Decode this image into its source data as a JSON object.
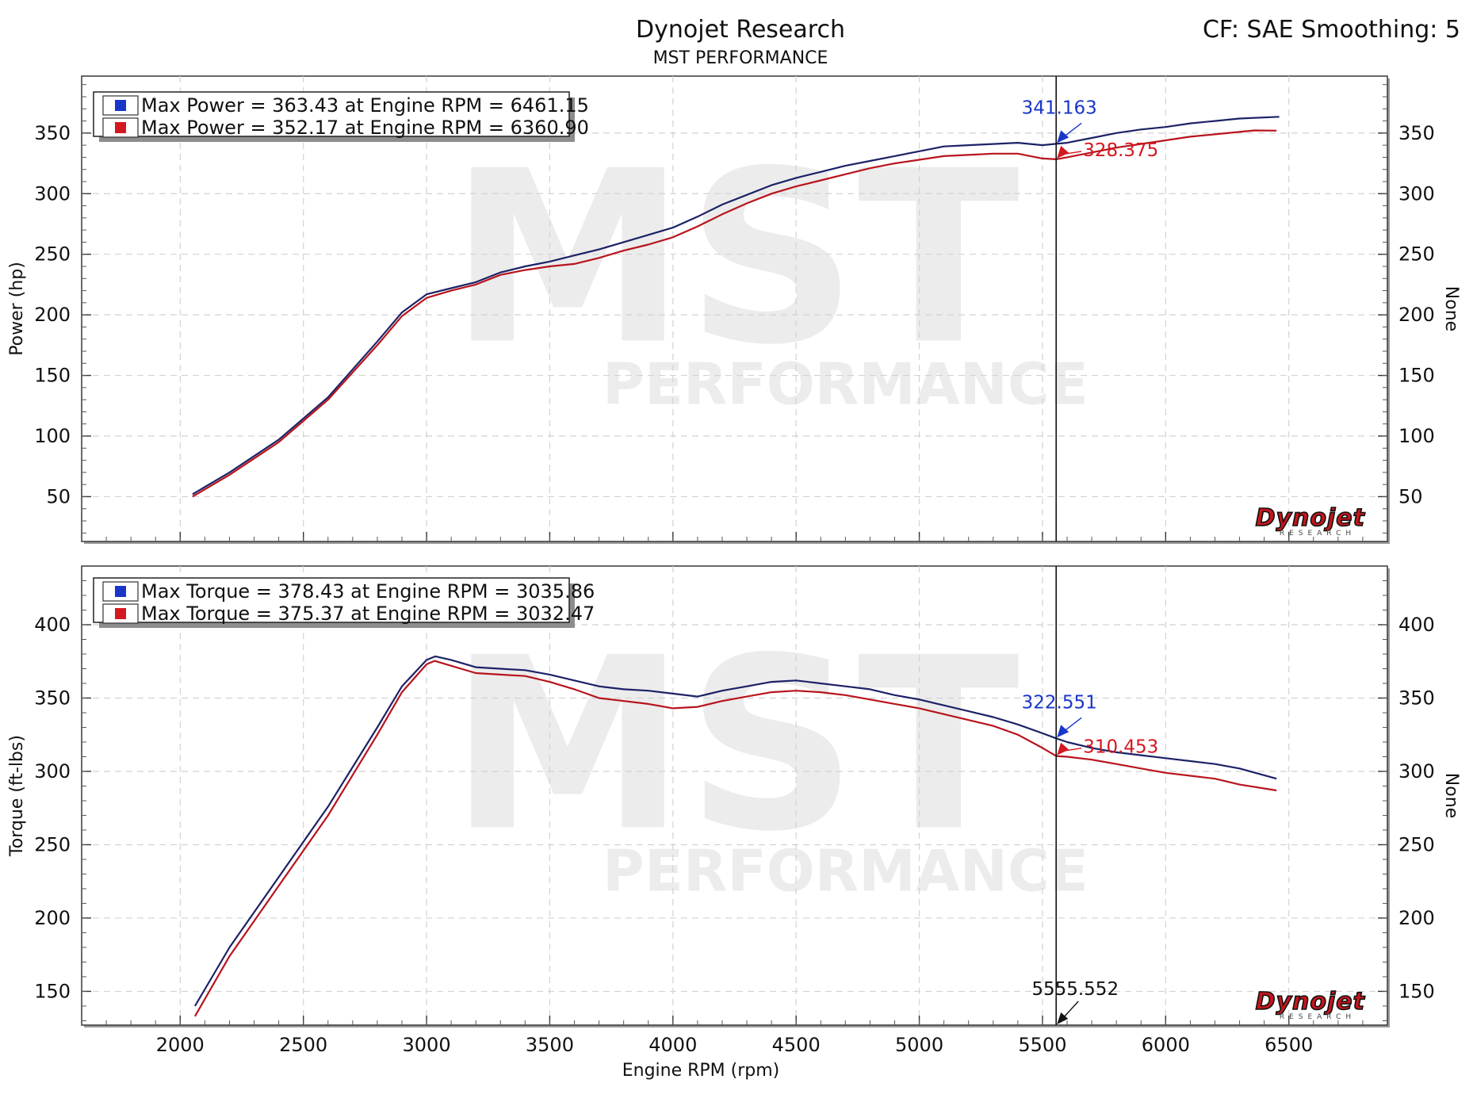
{
  "header": {
    "title": "Dynojet Research",
    "subtitle": "MST PERFORMANCE",
    "settings": "CF: SAE Smoothing: 5"
  },
  "watermark": {
    "brand": "MST",
    "tagline": "PERFORMANCE"
  },
  "logo": {
    "text": "Dynojet",
    "subtext": "RESEARCH"
  },
  "colors": {
    "run1": "#1c2266",
    "run1_marker": "#1a36c9",
    "run2": "#b8141d",
    "run2_marker": "#d41820",
    "cursor": "#111111",
    "grid": "#d2d2d2"
  },
  "x_axis": {
    "label": "Engine RPM (rpm)",
    "range": [
      1600,
      6900
    ],
    "ticks": [
      2000,
      2500,
      3000,
      3500,
      4000,
      4500,
      5000,
      5500,
      6000,
      6500
    ]
  },
  "cursor": {
    "x": 5555.552,
    "label": "5555.552"
  },
  "chart_data": [
    {
      "type": "line",
      "id": "power",
      "ylabel": "Power (hp)",
      "ylabel_right": "None",
      "ylim": [
        13,
        397
      ],
      "yticks": [
        50,
        100,
        150,
        200,
        250,
        300,
        350
      ],
      "grid": true,
      "legend_position": "top-left",
      "legend": [
        "Max Power = 363.43 at Engine RPM = 6461.15",
        "Max Power = 352.17 at Engine RPM = 6360.90"
      ],
      "cursor_values": [
        "341.163",
        "328.375"
      ],
      "series": [
        {
          "values": [
            [
              2050,
              52
            ],
            [
              2200,
              70
            ],
            [
              2400,
              97
            ],
            [
              2600,
              132
            ],
            [
              2800,
              178
            ],
            [
              2900,
              202
            ],
            [
              3000,
              217
            ],
            [
              3100,
              222
            ],
            [
              3200,
              227
            ],
            [
              3300,
              235
            ],
            [
              3400,
              240
            ],
            [
              3500,
              244
            ],
            [
              3600,
              249
            ],
            [
              3700,
              254
            ],
            [
              3800,
              260
            ],
            [
              3900,
              266
            ],
            [
              4000,
              272
            ],
            [
              4100,
              281
            ],
            [
              4200,
              291
            ],
            [
              4300,
              299
            ],
            [
              4400,
              307
            ],
            [
              4500,
              313
            ],
            [
              4600,
              318
            ],
            [
              4700,
              323
            ],
            [
              4800,
              327
            ],
            [
              4900,
              331
            ],
            [
              5000,
              335
            ],
            [
              5100,
              339
            ],
            [
              5200,
              340
            ],
            [
              5300,
              341
            ],
            [
              5400,
              342
            ],
            [
              5500,
              340
            ],
            [
              5555.552,
              341.163
            ],
            [
              5600,
              342
            ],
            [
              5700,
              346
            ],
            [
              5800,
              350
            ],
            [
              5900,
              353
            ],
            [
              6000,
              355
            ],
            [
              6100,
              358
            ],
            [
              6200,
              360
            ],
            [
              6300,
              362
            ],
            [
              6461.15,
              363.43
            ]
          ]
        },
        {
          "values": [
            [
              2050,
              50
            ],
            [
              2200,
              68
            ],
            [
              2400,
              95
            ],
            [
              2600,
              130
            ],
            [
              2800,
              175
            ],
            [
              2900,
              199
            ],
            [
              3000,
              214
            ],
            [
              3100,
              220
            ],
            [
              3200,
              225
            ],
            [
              3300,
              233
            ],
            [
              3400,
              237
            ],
            [
              3500,
              240
            ],
            [
              3600,
              242
            ],
            [
              3700,
              247
            ],
            [
              3800,
              253
            ],
            [
              3900,
              258
            ],
            [
              4000,
              264
            ],
            [
              4100,
              273
            ],
            [
              4200,
              283
            ],
            [
              4300,
              292
            ],
            [
              4400,
              300
            ],
            [
              4500,
              306
            ],
            [
              4600,
              311
            ],
            [
              4700,
              316
            ],
            [
              4800,
              321
            ],
            [
              4900,
              325
            ],
            [
              5000,
              328
            ],
            [
              5100,
              331
            ],
            [
              5200,
              332
            ],
            [
              5300,
              333
            ],
            [
              5400,
              333
            ],
            [
              5500,
              329
            ],
            [
              5555.552,
              328.375
            ],
            [
              5600,
              330
            ],
            [
              5700,
              334
            ],
            [
              5800,
              338
            ],
            [
              5900,
              341
            ],
            [
              6000,
              344
            ],
            [
              6100,
              347
            ],
            [
              6200,
              349
            ],
            [
              6360.9,
              352.17
            ],
            [
              6450,
              352
            ]
          ]
        }
      ]
    },
    {
      "type": "line",
      "id": "torque",
      "ylabel": "Torque (ft-lbs)",
      "ylabel_right": "None",
      "ylim": [
        127,
        440
      ],
      "yticks": [
        150,
        200,
        250,
        300,
        350,
        400
      ],
      "grid": true,
      "legend_position": "top-left",
      "legend": [
        "Max Torque = 378.43 at Engine RPM = 3035.86",
        "Max Torque = 375.37 at Engine RPM = 3032.47"
      ],
      "cursor_values": [
        "322.551",
        "310.453"
      ],
      "series": [
        {
          "values": [
            [
              2060,
              140
            ],
            [
              2200,
              180
            ],
            [
              2400,
              228
            ],
            [
              2600,
              276
            ],
            [
              2800,
              330
            ],
            [
              2900,
              358
            ],
            [
              3000,
              376
            ],
            [
              3035.86,
              378.43
            ],
            [
              3100,
              376
            ],
            [
              3200,
              371
            ],
            [
              3300,
              370
            ],
            [
              3400,
              369
            ],
            [
              3500,
              366
            ],
            [
              3600,
              362
            ],
            [
              3700,
              358
            ],
            [
              3800,
              356
            ],
            [
              3900,
              355
            ],
            [
              4000,
              353
            ],
            [
              4100,
              351
            ],
            [
              4200,
              355
            ],
            [
              4300,
              358
            ],
            [
              4400,
              361
            ],
            [
              4500,
              362
            ],
            [
              4600,
              360
            ],
            [
              4700,
              358
            ],
            [
              4800,
              356
            ],
            [
              4900,
              352
            ],
            [
              5000,
              349
            ],
            [
              5100,
              345
            ],
            [
              5200,
              341
            ],
            [
              5300,
              337
            ],
            [
              5400,
              332
            ],
            [
              5500,
              326
            ],
            [
              5555.552,
              322.551
            ],
            [
              5600,
              320
            ],
            [
              5700,
              316
            ],
            [
              5800,
              313
            ],
            [
              5900,
              311
            ],
            [
              6000,
              309
            ],
            [
              6100,
              307
            ],
            [
              6200,
              305
            ],
            [
              6300,
              302
            ],
            [
              6450,
              295
            ]
          ]
        },
        {
          "values": [
            [
              2060,
              133
            ],
            [
              2200,
              174
            ],
            [
              2400,
              222
            ],
            [
              2600,
              270
            ],
            [
              2800,
              325
            ],
            [
              2900,
              354
            ],
            [
              3000,
              373
            ],
            [
              3032.47,
              375.37
            ],
            [
              3100,
              372
            ],
            [
              3200,
              367
            ],
            [
              3300,
              366
            ],
            [
              3400,
              365
            ],
            [
              3500,
              361
            ],
            [
              3600,
              356
            ],
            [
              3700,
              350
            ],
            [
              3800,
              348
            ],
            [
              3900,
              346
            ],
            [
              4000,
              343
            ],
            [
              4100,
              344
            ],
            [
              4200,
              348
            ],
            [
              4300,
              351
            ],
            [
              4400,
              354
            ],
            [
              4500,
              355
            ],
            [
              4600,
              354
            ],
            [
              4700,
              352
            ],
            [
              4800,
              349
            ],
            [
              4900,
              346
            ],
            [
              5000,
              343
            ],
            [
              5100,
              339
            ],
            [
              5200,
              335
            ],
            [
              5300,
              331
            ],
            [
              5400,
              325
            ],
            [
              5500,
              316
            ],
            [
              5555.552,
              310.453
            ],
            [
              5600,
              310
            ],
            [
              5700,
              308
            ],
            [
              5800,
              305
            ],
            [
              5900,
              302
            ],
            [
              6000,
              299
            ],
            [
              6100,
              297
            ],
            [
              6200,
              295
            ],
            [
              6300,
              291
            ],
            [
              6450,
              287
            ]
          ]
        }
      ]
    }
  ]
}
